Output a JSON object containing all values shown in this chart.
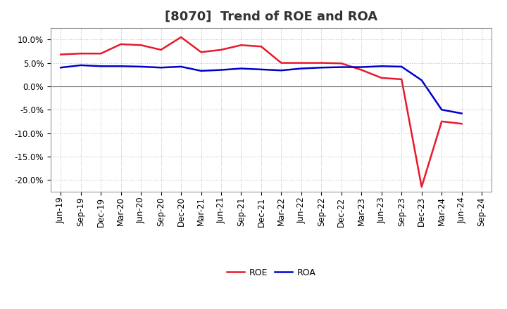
{
  "title": "[8070]  Trend of ROE and ROA",
  "labels": [
    "Jun-19",
    "Sep-19",
    "Dec-19",
    "Mar-20",
    "Jun-20",
    "Sep-20",
    "Dec-20",
    "Mar-21",
    "Jun-21",
    "Sep-21",
    "Dec-21",
    "Mar-22",
    "Jun-22",
    "Sep-22",
    "Dec-22",
    "Mar-23",
    "Jun-23",
    "Sep-23",
    "Dec-23",
    "Mar-24",
    "Jun-24",
    "Sep-24"
  ],
  "ROE": [
    6.8,
    7.0,
    7.0,
    9.0,
    8.8,
    7.8,
    10.5,
    7.3,
    7.8,
    8.8,
    8.5,
    5.0,
    5.0,
    5.0,
    4.9,
    3.5,
    1.8,
    1.5,
    -21.5,
    -7.5,
    -8.0,
    null
  ],
  "ROA": [
    4.0,
    4.5,
    4.3,
    4.3,
    4.2,
    4.0,
    4.2,
    3.3,
    3.5,
    3.8,
    3.6,
    3.4,
    3.8,
    4.0,
    4.1,
    4.1,
    4.3,
    4.2,
    1.3,
    -5.0,
    -5.8,
    null
  ],
  "roe_color": "#e8192c",
  "roa_color": "#0000cd",
  "background_color": "#ffffff",
  "grid_color": "#aaaaaa",
  "ylim": [
    -22.5,
    12.5
  ],
  "yticks": [
    -20.0,
    -15.0,
    -10.0,
    -5.0,
    0.0,
    5.0,
    10.0
  ],
  "line_width": 1.8,
  "title_fontsize": 13,
  "tick_fontsize": 8.5,
  "legend_fontsize": 9
}
